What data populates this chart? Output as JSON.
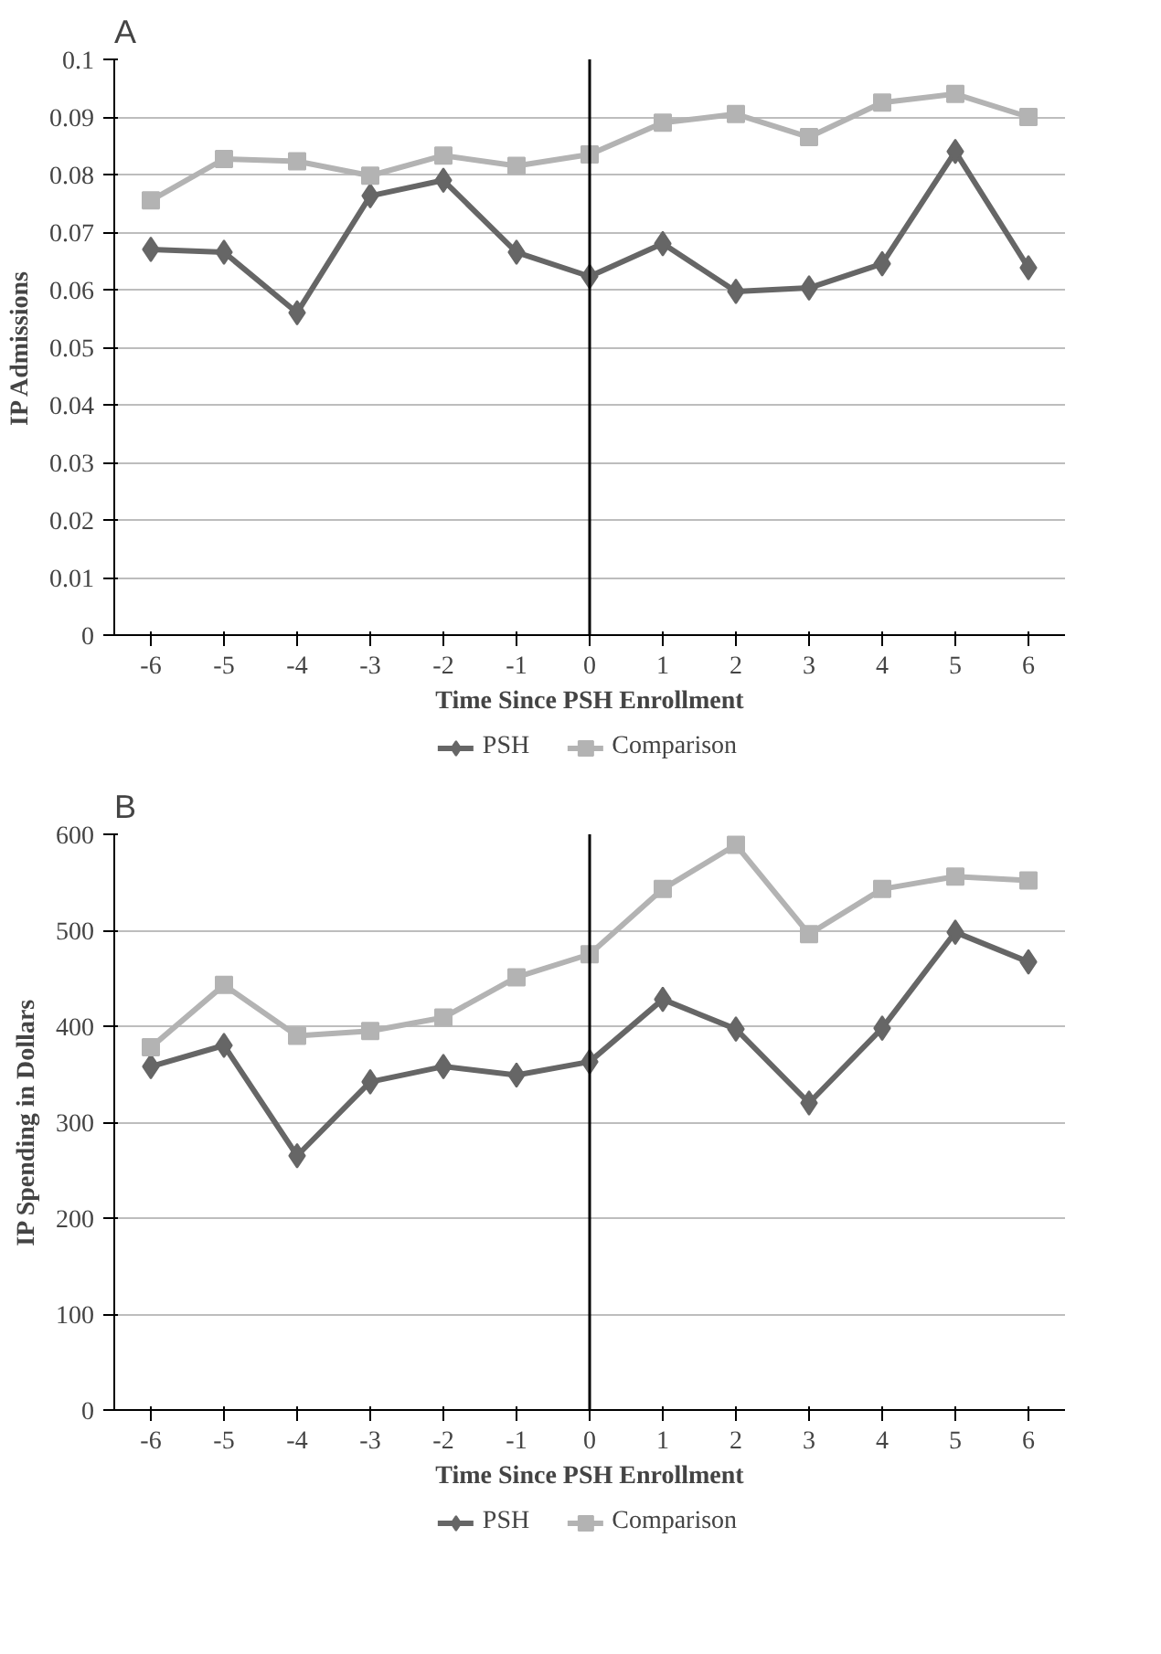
{
  "chart_data": [
    {
      "type": "line",
      "title": "A",
      "xlabel": "Time Since PSH Enrollment",
      "ylabel": "IP Admissions",
      "categories": [
        "-6",
        "-5",
        "-4",
        "-3",
        "-2",
        "-1",
        "0",
        "1",
        "2",
        "3",
        "4",
        "5",
        "6"
      ],
      "ylim": [
        0,
        0.1
      ],
      "yticks": [
        0,
        0.01,
        0.02,
        0.03,
        0.04,
        0.05,
        0.06,
        0.07,
        0.08,
        0.09,
        0.1
      ],
      "grid": "y",
      "legend": "bottom",
      "ref_lines": [
        {
          "axis": "x",
          "value": "0",
          "color": "#000000"
        }
      ],
      "series": [
        {
          "name": "PSH",
          "color": "#666666",
          "marker": "diamond",
          "values": [
            0.067,
            0.0665,
            0.056,
            0.0763,
            0.079,
            0.0665,
            0.0623,
            0.068,
            0.0597,
            0.0603,
            0.0645,
            0.084,
            0.0638
          ]
        },
        {
          "name": "Comparison",
          "color": "#b3b3b3",
          "marker": "square",
          "values": [
            0.0755,
            0.0827,
            0.0823,
            0.0798,
            0.0833,
            0.0815,
            0.0835,
            0.089,
            0.0905,
            0.0865,
            0.0925,
            0.094,
            0.09
          ]
        }
      ]
    },
    {
      "type": "line",
      "title": "B",
      "xlabel": "Time Since PSH Enrollment",
      "ylabel": "IP Spending in Dollars",
      "categories": [
        "-6",
        "-5",
        "-4",
        "-3",
        "-2",
        "-1",
        "0",
        "1",
        "2",
        "3",
        "4",
        "5",
        "6"
      ],
      "ylim": [
        0,
        600
      ],
      "yticks": [
        0,
        100,
        200,
        300,
        400,
        500,
        600
      ],
      "grid": "y",
      "legend": "bottom",
      "ref_lines": [
        {
          "axis": "x",
          "value": "0",
          "color": "#000000"
        }
      ],
      "series": [
        {
          "name": "PSH",
          "color": "#666666",
          "marker": "diamond",
          "values": [
            358,
            380,
            265,
            342,
            358,
            349,
            363,
            428,
            397,
            320,
            398,
            498,
            467
          ]
        },
        {
          "name": "Comparison",
          "color": "#b3b3b3",
          "marker": "square",
          "values": [
            378,
            443,
            390,
            395,
            409,
            451,
            475,
            543,
            589,
            496,
            543,
            556,
            552
          ]
        }
      ]
    }
  ]
}
